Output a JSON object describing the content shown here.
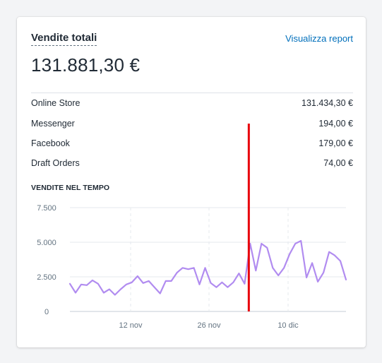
{
  "card": {
    "title": "Vendite totali",
    "report_link": "Visualizza report",
    "total": "131.881,30 €",
    "channels": [
      {
        "name": "Online Store",
        "value": "131.434,30 €"
      },
      {
        "name": "Messenger",
        "value": "194,00 €"
      },
      {
        "name": "Facebook",
        "value": "179,00 €"
      },
      {
        "name": "Draft Orders",
        "value": "74,00 €"
      }
    ],
    "section_title": "VENDITE NEL TEMPO"
  },
  "colors": {
    "line": "#b18cf0",
    "marker": "#e8000b",
    "link": "#006fbb"
  },
  "chart_data": {
    "type": "line",
    "title": "VENDITE NEL TEMPO",
    "y_ticks": [
      "7.500",
      "5.000",
      "2.500",
      "0"
    ],
    "y_tick_values": [
      7500,
      5000,
      2500,
      0
    ],
    "x_ticks": [
      "12 nov",
      "26 nov",
      "10 dic"
    ],
    "ylim": [
      0,
      7500
    ],
    "grid": true,
    "series": [
      {
        "values": [
          2000,
          1350,
          1950,
          1900,
          2250,
          2000,
          1350,
          1600,
          1200,
          1600,
          1950,
          2100,
          2550,
          2050,
          2200,
          1750,
          1300,
          2200,
          2200,
          2800,
          3150,
          3050,
          3150,
          1950,
          3150,
          2050,
          1750,
          2100,
          1750,
          2100,
          2750,
          2000,
          4900,
          2950,
          4900,
          4600,
          3150,
          2600,
          3150,
          4150,
          4900,
          5100,
          2450,
          3500,
          2150,
          2800,
          4300,
          4050,
          3650,
          2300
        ]
      }
    ],
    "highlight_marker": {
      "index": 32
    }
  }
}
